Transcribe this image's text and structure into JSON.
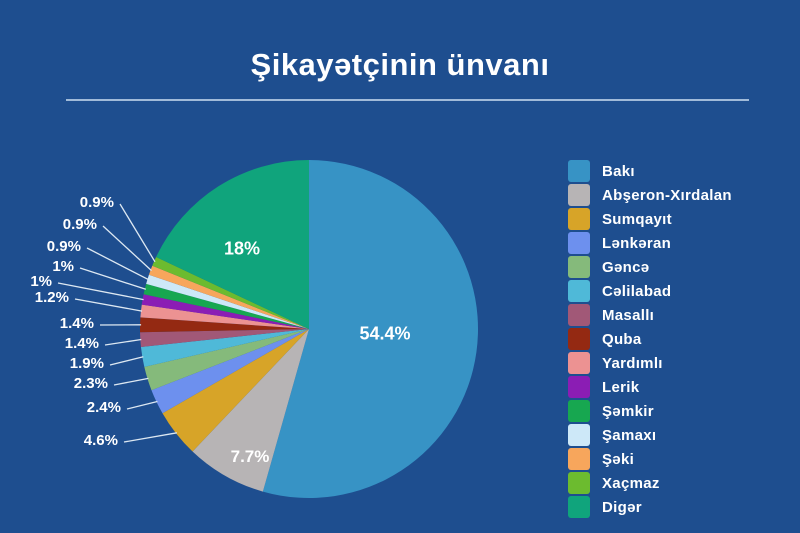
{
  "page": {
    "title": "Şikayətçinin ünvanı",
    "background_color": "#1e4e8f",
    "title_color": "#ffffff",
    "divider_color": "#b9cfe6",
    "label_color": "#ffffff",
    "leader_line_color": "#dde8f2"
  },
  "chart_data": {
    "type": "pie",
    "title": "Şikayətçinin ünvanı",
    "direction": "clockwise",
    "start_angle_deg": 0,
    "legend_position": "right",
    "total": 100,
    "series": [
      {
        "label": "Bakı",
        "value": 54.4,
        "display": "54.4%",
        "color": "#3793c5",
        "label_placement": "inside"
      },
      {
        "label": "Abşeron-Xırdalan",
        "value": 7.7,
        "display": "7.7%",
        "color": "#b7b4b5",
        "label_placement": "inside"
      },
      {
        "label": "Sumqayıt",
        "value": 4.6,
        "display": "4.6%",
        "color": "#d7a428",
        "label_placement": "outside"
      },
      {
        "label": "Lənkəran",
        "value": 2.4,
        "display": "2.4%",
        "color": "#6d90ee",
        "label_placement": "outside"
      },
      {
        "label": "Gəncə",
        "value": 2.3,
        "display": "2.3%",
        "color": "#85ba7b",
        "label_placement": "outside"
      },
      {
        "label": "Cəlilabad",
        "value": 1.9,
        "display": "1.9%",
        "color": "#4fb9d8",
        "label_placement": "outside"
      },
      {
        "label": "Masallı",
        "value": 1.4,
        "display": "1.4%",
        "color": "#a15877",
        "label_placement": "outside"
      },
      {
        "label": "Quba",
        "value": 1.4,
        "display": "1.4%",
        "color": "#942912",
        "label_placement": "outside"
      },
      {
        "label": "Yardımlı",
        "value": 1.2,
        "display": "1.2%",
        "color": "#ec9292",
        "label_placement": "outside"
      },
      {
        "label": "Lerik",
        "value": 1.0,
        "display": "1%",
        "color": "#8b1db4",
        "label_placement": "outside"
      },
      {
        "label": "Şəmkir",
        "value": 1.0,
        "display": "1%",
        "color": "#17a750",
        "label_placement": "outside"
      },
      {
        "label": "Şamaxı",
        "value": 0.9,
        "display": "0.9%",
        "color": "#cde8f8",
        "label_placement": "outside"
      },
      {
        "label": "Şəki",
        "value": 0.9,
        "display": "0.9%",
        "color": "#f7a65c",
        "label_placement": "outside"
      },
      {
        "label": "Xaçmaz",
        "value": 0.9,
        "display": "0.9%",
        "color": "#6cbb2f",
        "label_placement": "outside"
      },
      {
        "label": "Digər",
        "value": 18.0,
        "display": "18%",
        "color": "#10a47c",
        "label_placement": "inside"
      }
    ]
  }
}
